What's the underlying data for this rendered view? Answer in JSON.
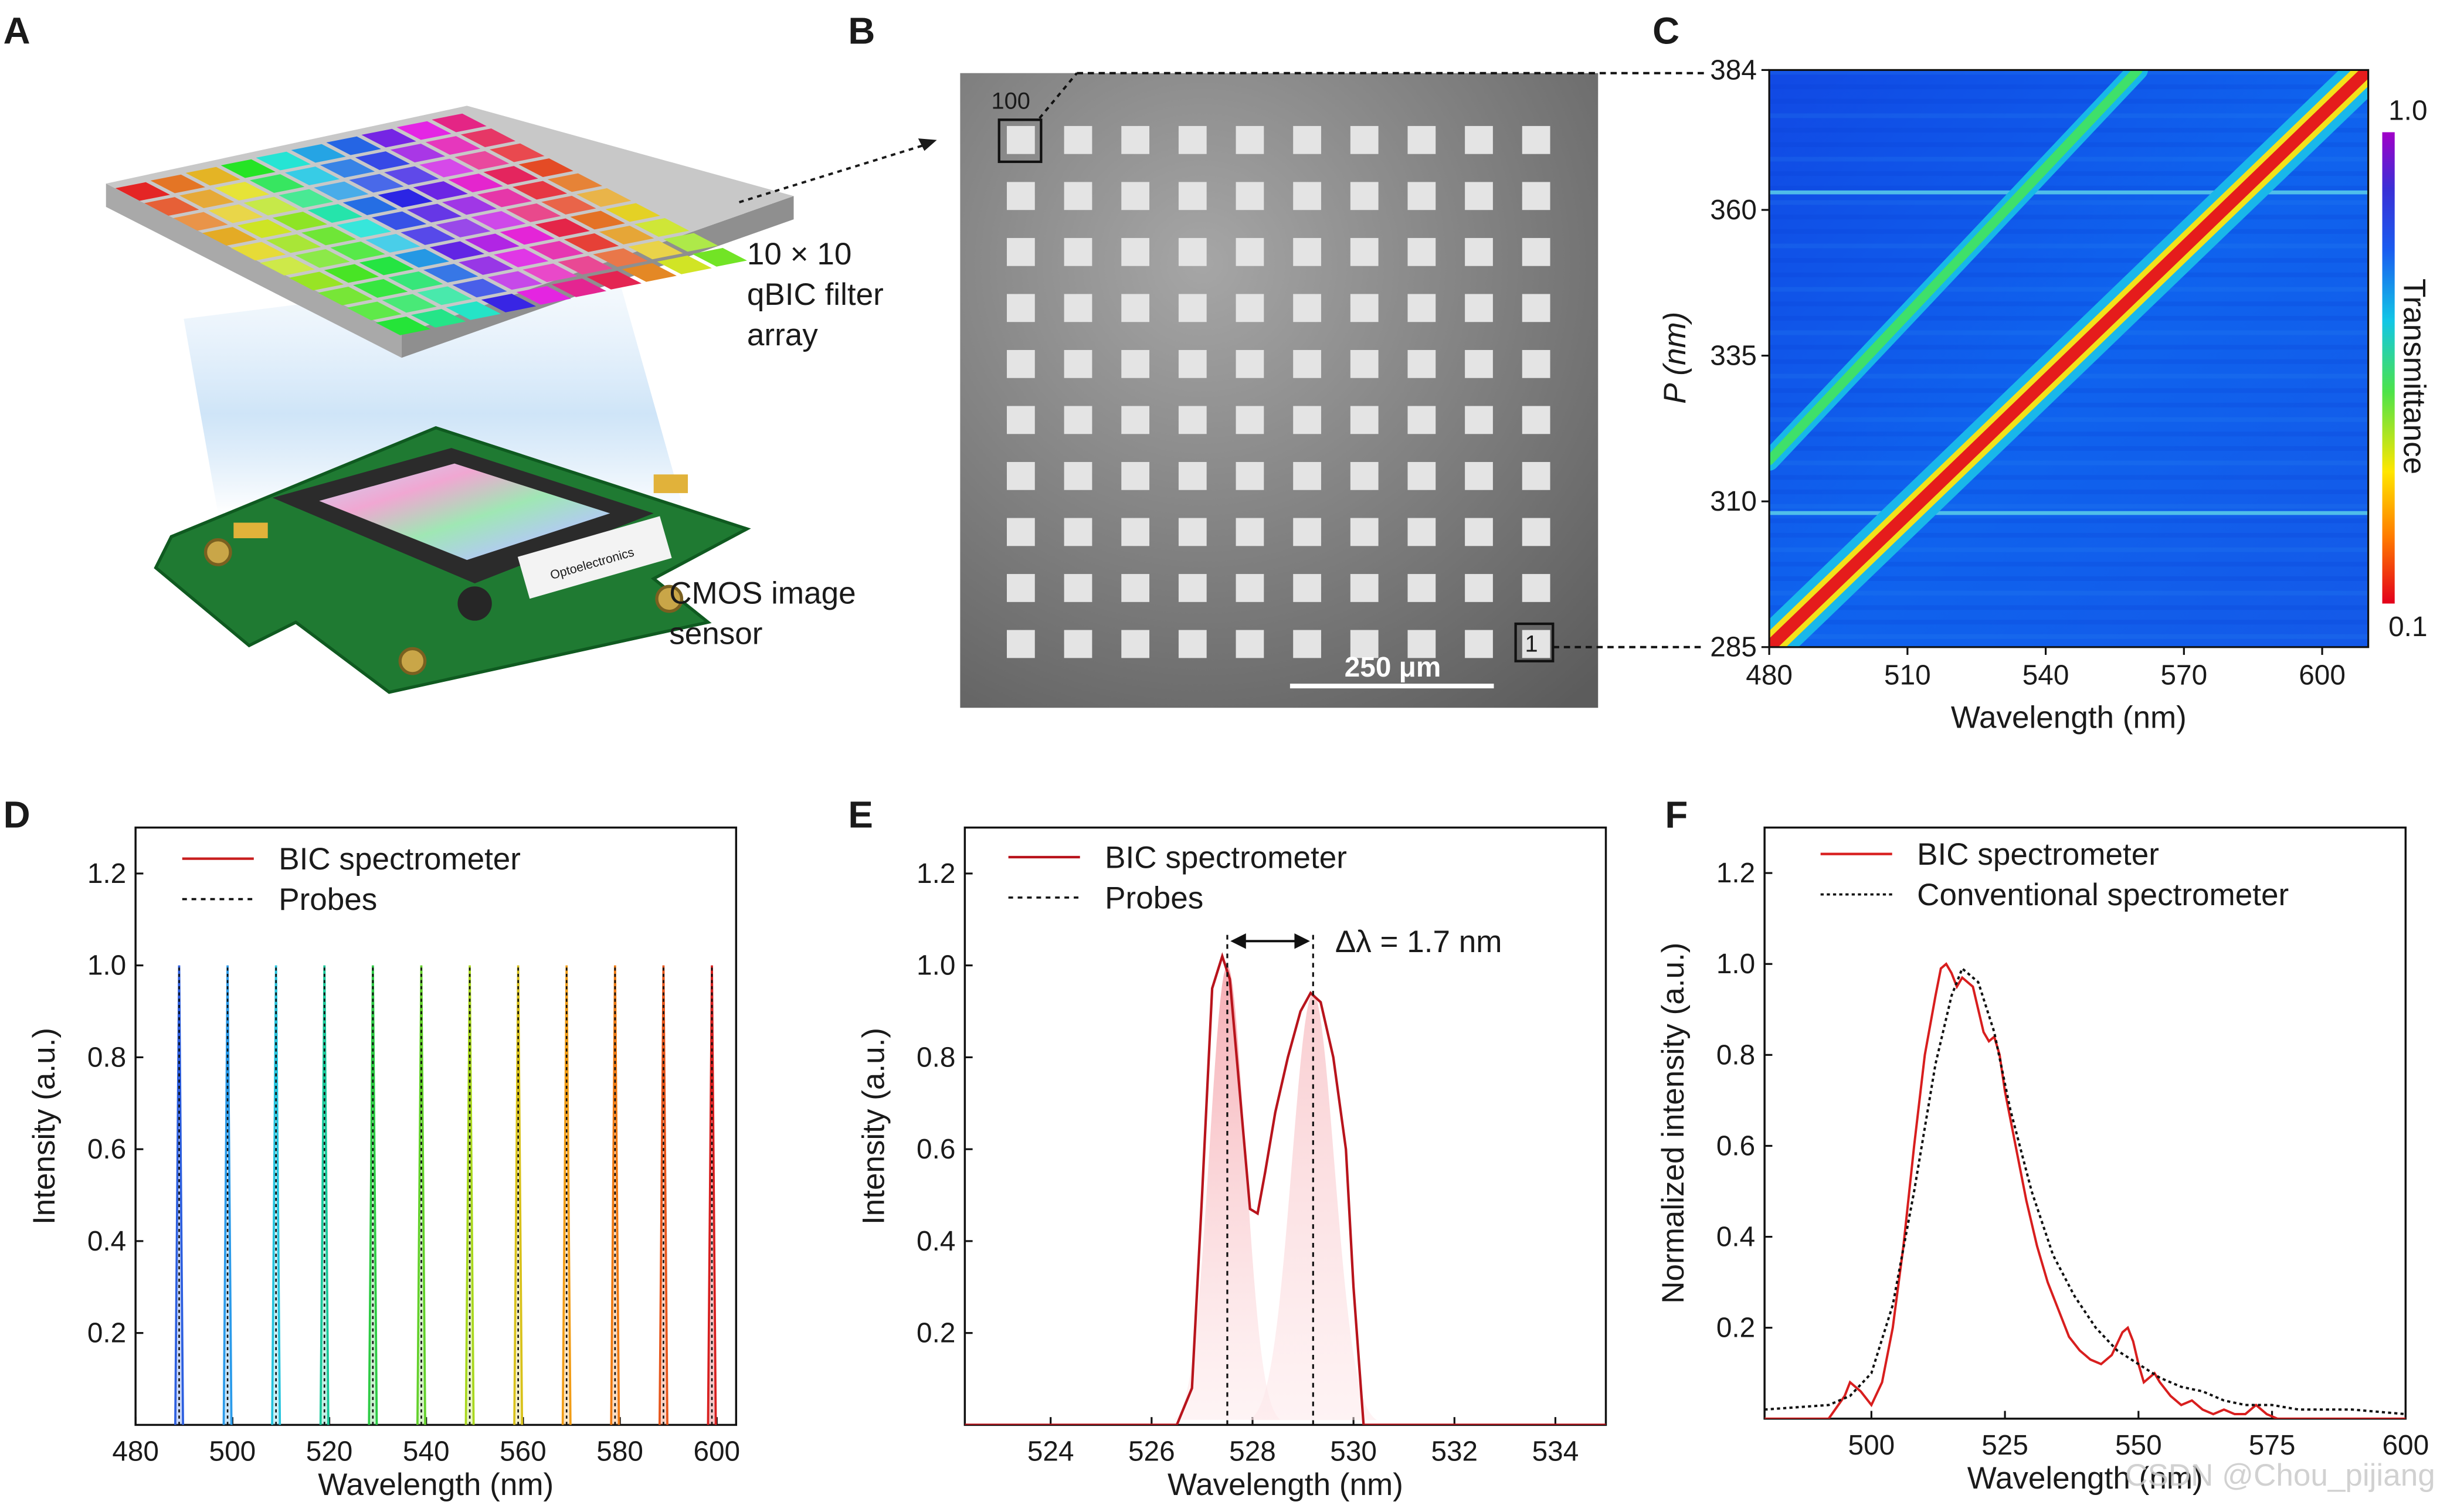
{
  "panels": {
    "A": {
      "letter": "A",
      "filter_caption": [
        "10 × 10",
        "qBIC filter",
        "array"
      ],
      "sensor_caption": [
        "CMOS image",
        "sensor"
      ],
      "board_brand": "Optoelectronics"
    },
    "B": {
      "letter": "B",
      "label_top": "100",
      "label_bottom": "1",
      "scale_bar": "250 μm"
    },
    "C": {
      "letter": "C",
      "colorbar_label": "Transmittance",
      "colorbar_max": "1.0",
      "colorbar_min": "0.1"
    },
    "D": {
      "letter": "D"
    },
    "E": {
      "letter": "E",
      "annotation": "Δλ = 1.7 nm"
    },
    "F": {
      "letter": "F"
    },
    "watermark": "CSDN @Chou_pijiang"
  },
  "chart_data": [
    {
      "id": "C",
      "type": "heatmap",
      "xlabel": "Wavelength (nm)",
      "ylabel": "P (nm)",
      "xlim": [
        480,
        610
      ],
      "ylim": [
        285,
        384
      ],
      "xticks": [
        480,
        510,
        540,
        570,
        600
      ],
      "yticks": [
        285,
        310,
        335,
        360,
        384
      ],
      "colorbar": {
        "label": "Transmittance",
        "range": [
          0.1,
          1.0
        ],
        "colors": [
          "#e3001b",
          "#ff7a00",
          "#ffe600",
          "#4ce34a",
          "#12c6e6",
          "#1a5cf0",
          "#3a2fd6",
          "#a100c8"
        ]
      },
      "ridges": [
        {
          "name": "primary resonance",
          "x": [
            480,
            610
          ],
          "y": [
            285,
            384
          ]
        },
        {
          "name": "secondary resonance",
          "x": [
            480,
            560
          ],
          "y": [
            317,
            384
          ]
        }
      ],
      "horizontal_artifacts": [
        308,
        363
      ]
    },
    {
      "id": "D",
      "type": "line",
      "xlabel": "Wavelength (nm)",
      "ylabel": "Intensity (a.u.)",
      "xlim": [
        480,
        604
      ],
      "ylim": [
        0,
        1.3
      ],
      "xticks": [
        480,
        500,
        520,
        540,
        560,
        580,
        600
      ],
      "yticks": [
        0.2,
        0.4,
        0.6,
        0.8,
        1.0,
        1.2
      ],
      "legend": [
        "BIC spectrometer",
        "Probes"
      ],
      "peaks": [
        489,
        499,
        509,
        519,
        529,
        539,
        549,
        559,
        569,
        579,
        589,
        599
      ],
      "peak_height": 1.0,
      "peak_colors": [
        "#2d5fe0",
        "#2b9bea",
        "#25c4de",
        "#19c99a",
        "#2ccb43",
        "#63d12a",
        "#a9d81e",
        "#d9c21a",
        "#f29d16",
        "#f07a12",
        "#e7551a",
        "#d81e1e"
      ]
    },
    {
      "id": "E",
      "type": "line",
      "xlabel": "Wavelength (nm)",
      "ylabel": "Intensity (a.u.)",
      "xlim": [
        522.3,
        535
      ],
      "ylim": [
        0,
        1.3
      ],
      "xticks": [
        524,
        526,
        528,
        530,
        532,
        534
      ],
      "yticks": [
        0.2,
        0.4,
        0.6,
        0.8,
        1.0,
        1.2
      ],
      "legend": [
        "BIC spectrometer",
        "Probes"
      ],
      "series": [
        {
          "name": "BIC spectrometer",
          "x": [
            522.3,
            526.5,
            526.8,
            527.0,
            527.2,
            527.4,
            527.55,
            527.75,
            527.95,
            528.1,
            528.25,
            528.45,
            528.7,
            528.95,
            529.15,
            529.35,
            529.6,
            529.85,
            530.0,
            530.2,
            535.0
          ],
          "y": [
            0.0,
            0.0,
            0.08,
            0.5,
            0.95,
            1.02,
            0.97,
            0.72,
            0.47,
            0.46,
            0.55,
            0.68,
            0.8,
            0.9,
            0.94,
            0.92,
            0.8,
            0.6,
            0.3,
            0.0,
            0.0
          ]
        }
      ],
      "probes": [
        527.5,
        529.2
      ],
      "annotation": "Δλ = 1.7 nm"
    },
    {
      "id": "F",
      "type": "line",
      "xlabel": "Wavelength (nm)",
      "ylabel": "Normalized intensity (a.u.)",
      "xlim": [
        480,
        600
      ],
      "ylim": [
        0,
        1.3
      ],
      "xticks": [
        500,
        525,
        550,
        575,
        600
      ],
      "yticks": [
        0.2,
        0.4,
        0.6,
        0.8,
        1.0,
        1.2
      ],
      "legend": [
        "BIC spectrometer",
        "Conventional spectrometer"
      ],
      "series": [
        {
          "name": "BIC spectrometer",
          "x": [
            480,
            492,
            495,
            496,
            498,
            500,
            502,
            504,
            506,
            508,
            510,
            512,
            513,
            514,
            515,
            516,
            517,
            518,
            519,
            520,
            521,
            522,
            523,
            524,
            525,
            527,
            529,
            531,
            533,
            535,
            537,
            539,
            541,
            543,
            545,
            547,
            548,
            549,
            550,
            551,
            552,
            553,
            554,
            556,
            558,
            560,
            562,
            564,
            566,
            568,
            570,
            572,
            574,
            576,
            580,
            590,
            600
          ],
          "y": [
            0.0,
            0.0,
            0.05,
            0.08,
            0.06,
            0.03,
            0.08,
            0.2,
            0.38,
            0.6,
            0.8,
            0.93,
            0.99,
            1.0,
            0.98,
            0.95,
            0.97,
            0.96,
            0.95,
            0.9,
            0.85,
            0.83,
            0.84,
            0.8,
            0.72,
            0.6,
            0.48,
            0.38,
            0.3,
            0.24,
            0.18,
            0.15,
            0.13,
            0.12,
            0.14,
            0.19,
            0.2,
            0.17,
            0.12,
            0.08,
            0.09,
            0.1,
            0.08,
            0.05,
            0.03,
            0.04,
            0.02,
            0.01,
            0.02,
            0.01,
            0.01,
            0.03,
            0.01,
            0.0,
            0.0,
            0.0,
            0.0
          ]
        },
        {
          "name": "Conventional spectrometer",
          "x": [
            480,
            492,
            496,
            500,
            504,
            508,
            512,
            515,
            517,
            520,
            523,
            526,
            530,
            534,
            538,
            542,
            546,
            550,
            554,
            558,
            562,
            566,
            570,
            575,
            580,
            590,
            600
          ],
          "y": [
            0.02,
            0.03,
            0.05,
            0.1,
            0.25,
            0.5,
            0.78,
            0.93,
            0.99,
            0.96,
            0.85,
            0.68,
            0.5,
            0.36,
            0.27,
            0.2,
            0.15,
            0.12,
            0.09,
            0.07,
            0.06,
            0.04,
            0.03,
            0.03,
            0.02,
            0.02,
            0.01
          ]
        }
      ]
    }
  ]
}
